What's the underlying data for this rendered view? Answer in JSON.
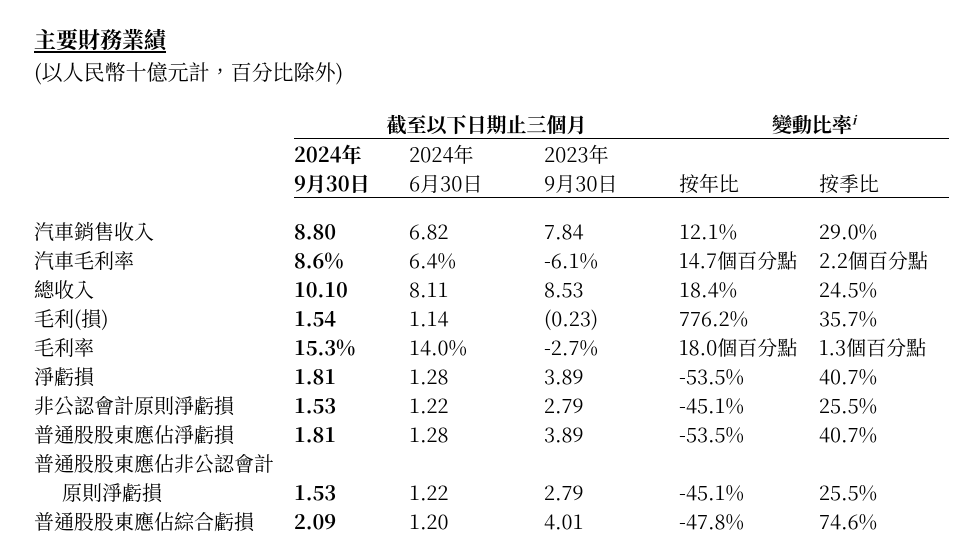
{
  "title": "主要財務業績",
  "subtitle": "(以人民幣十億元計，百分比除外)",
  "header": {
    "periodSpan": "截至以下日期止三個月",
    "changeSpan": "變動比率",
    "changeSup": "i",
    "col1a": "2024年",
    "col1b": "9月30日",
    "col2a": "2024年",
    "col2b": "6月30日",
    "col3a": "2023年",
    "col3b": "9月30日",
    "col4": "按年比",
    "col5": "按季比"
  },
  "rows": [
    {
      "label": "汽車銷售收入",
      "c1": "8.80",
      "c2": "6.82",
      "c3": "7.84",
      "c4": "12.1%",
      "c5": "29.0%"
    },
    {
      "label": "汽車毛利率",
      "c1": "8.6%",
      "c2": "6.4%",
      "c3": "-6.1%",
      "c4": "14.7個百分點",
      "c5": "2.2個百分點"
    },
    {
      "label": "總收入",
      "c1": "10.10",
      "c2": "8.11",
      "c3": "8.53",
      "c4": "18.4%",
      "c5": "24.5%"
    },
    {
      "label": "毛利(損)",
      "c1": "1.54",
      "c2": "1.14",
      "c3": "(0.23)",
      "c4": "776.2%",
      "c5": "35.7%"
    },
    {
      "label": "毛利率",
      "c1": "15.3%",
      "c2": "14.0%",
      "c3": "-2.7%",
      "c4": "18.0個百分點",
      "c5": "1.3個百分點"
    },
    {
      "label": "淨虧損",
      "c1": "1.81",
      "c2": "1.28",
      "c3": "3.89",
      "c4": "-53.5%",
      "c5": "40.7%"
    },
    {
      "label": "非公認會計原則淨虧損",
      "c1": "1.53",
      "c2": "1.22",
      "c3": "2.79",
      "c4": "-45.1%",
      "c5": "25.5%"
    },
    {
      "label": "普通股股東應佔淨虧損",
      "c1": "1.81",
      "c2": "1.28",
      "c3": "3.89",
      "c4": "-53.5%",
      "c5": "40.7%"
    }
  ],
  "splitRow": {
    "labelTop": "普通股股東應佔非公認會計",
    "labelBottom": "原則淨虧損",
    "c1": "1.53",
    "c2": "1.22",
    "c3": "2.79",
    "c4": "-45.1%",
    "c5": "25.5%"
  },
  "lastRow": {
    "label": "普通股股東應佔綜合虧損",
    "c1": "2.09",
    "c2": "1.20",
    "c3": "4.01",
    "c4": "-47.8%",
    "c5": "74.6%"
  },
  "style": {
    "textColor": "#000000",
    "bg": "#ffffff",
    "fontSizeTitle": 22,
    "fontSizeBody": 20,
    "fontFamily": "serif-cjk",
    "type": "table",
    "columns": 6,
    "boldColumn": 1
  }
}
